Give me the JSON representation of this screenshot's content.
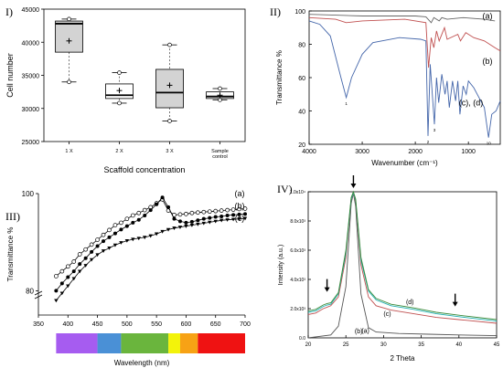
{
  "panels": [
    {
      "label": "I)",
      "chart_data": {
        "type": "box",
        "xlabel": "Scaffold concentration",
        "ylabel": "Cell number",
        "ylim": [
          25000,
          45000
        ],
        "yticks": [
          "25000",
          "30000",
          "35000",
          "40000",
          "45000"
        ],
        "categories": [
          "1 X",
          "2 X",
          "3 X",
          "Sample control"
        ],
        "boxes": [
          {
            "min": 34000,
            "q1": 38500,
            "median": 42800,
            "q3": 43200,
            "max": 43500,
            "mean": 40200,
            "fill": "#d3d3d3"
          },
          {
            "min": 30800,
            "q1": 31500,
            "median": 32000,
            "q3": 33700,
            "max": 35400,
            "mean": 32700,
            "fill": "#ffffff"
          },
          {
            "min": 28100,
            "q1": 30100,
            "median": 32400,
            "q3": 35900,
            "max": 39600,
            "mean": 33500,
            "fill": "#d3d3d3"
          },
          {
            "min": 31300,
            "q1": 31500,
            "median": 31800,
            "q3": 32500,
            "max": 33000,
            "mean": 32000,
            "fill": "#ffffff"
          }
        ]
      }
    },
    {
      "label": "II)",
      "chart_data": {
        "type": "line",
        "xlabel": "Wavenumber (cm⁻¹)",
        "ylabel": "Transmittance %",
        "xlim": [
          4000,
          400
        ],
        "ylim": [
          20,
          100
        ],
        "xticks": [
          "4000",
          "3000",
          "2000",
          "1000"
        ],
        "yticks": [
          "20",
          "40",
          "60",
          "80",
          "100"
        ],
        "series": [
          {
            "name": "(a)",
            "color": "#666666",
            "points": [
              [
                4000,
                98
              ],
              [
                3500,
                97.5
              ],
              [
                3000,
                97
              ],
              [
                2000,
                97
              ],
              [
                1800,
                96.5
              ],
              [
                1700,
                93
              ],
              [
                1650,
                96
              ],
              [
                1550,
                94
              ],
              [
                1500,
                96
              ],
              [
                1400,
                95
              ],
              [
                1100,
                96
              ],
              [
                900,
                95.5
              ],
              [
                700,
                95
              ],
              [
                500,
                94
              ]
            ]
          },
          {
            "name": "(b)",
            "color": "#c05050",
            "points": [
              [
                4000,
                96
              ],
              [
                3500,
                95
              ],
              [
                3300,
                93
              ],
              [
                3000,
                94
              ],
              [
                2200,
                95
              ],
              [
                1800,
                93
              ],
              [
                1750,
                66
              ],
              [
                1700,
                84
              ],
              [
                1650,
                78
              ],
              [
                1600,
                88
              ],
              [
                1550,
                82
              ],
              [
                1450,
                90
              ],
              [
                1400,
                83
              ],
              [
                1200,
                86
              ],
              [
                1150,
                82
              ],
              [
                1050,
                87
              ],
              [
                900,
                84
              ],
              [
                700,
                82
              ],
              [
                500,
                78
              ],
              [
                400,
                76
              ]
            ]
          },
          {
            "name": "(c), (d)",
            "color": "#4466aa",
            "points": [
              [
                4000,
                94
              ],
              [
                3800,
                92
              ],
              [
                3600,
                85
              ],
              [
                3400,
                60
              ],
              [
                3300,
                48
              ],
              [
                3200,
                60
              ],
              [
                3000,
                74
              ],
              [
                2800,
                81
              ],
              [
                2300,
                84
              ],
              [
                1900,
                83
              ],
              [
                1800,
                82
              ],
              [
                1760,
                25
              ],
              [
                1720,
                68
              ],
              [
                1640,
                32
              ],
              [
                1600,
                60
              ],
              [
                1560,
                45
              ],
              [
                1500,
                62
              ],
              [
                1440,
                50
              ],
              [
                1400,
                58
              ],
              [
                1360,
                42
              ],
              [
                1300,
                58
              ],
              [
                1240,
                46
              ],
              [
                1200,
                58
              ],
              [
                1160,
                38
              ],
              [
                1100,
                55
              ],
              [
                1040,
                50
              ],
              [
                1000,
                58
              ],
              [
                900,
                54
              ],
              [
                800,
                48
              ],
              [
                700,
                42
              ],
              [
                620,
                24
              ],
              [
                560,
                38
              ],
              [
                480,
                40
              ],
              [
                400,
                46
              ]
            ]
          }
        ],
        "peak_labels": [
          "1",
          "2",
          "3",
          "10"
        ]
      }
    },
    {
      "label": "III)",
      "chart_data": {
        "type": "line",
        "xlabel": "Wavelength (nm)",
        "ylabel": "Transmittance %",
        "xlim": [
          350,
          700
        ],
        "ylim": [
          75,
          100
        ],
        "xticks": [
          "350",
          "400",
          "450",
          "500",
          "550",
          "600",
          "650",
          "700"
        ],
        "yticks": [
          "80",
          "100"
        ],
        "series": [
          {
            "name": "(a)",
            "marker": "open-circle",
            "x": [
              380,
              390,
              400,
              410,
              420,
              430,
              440,
              450,
              460,
              470,
              480,
              490,
              500,
              510,
              520,
              530,
              540,
              550,
              560,
              570,
              580,
              590,
              600,
              610,
              620,
              630,
              640,
              650,
              660,
              670,
              680,
              690,
              700
            ],
            "y": [
              83,
              84,
              85,
              86,
              87.5,
              88.5,
              89.5,
              90.5,
              91.5,
              92.5,
              93.5,
              94,
              94.8,
              95.5,
              96,
              96.6,
              97.2,
              98,
              98.8,
              96.5,
              95.6,
              95.7,
              95.8,
              96,
              96.1,
              96.2,
              96.3,
              96.4,
              96.5,
              96.6,
              96.7,
              96.8,
              96.9
            ]
          },
          {
            "name": "(b)",
            "marker": "filled-circle",
            "x": [
              380,
              390,
              400,
              410,
              420,
              430,
              440,
              450,
              460,
              470,
              480,
              490,
              500,
              510,
              520,
              530,
              540,
              550,
              560,
              570,
              580,
              590,
              600,
              610,
              620,
              630,
              640,
              650,
              660,
              670,
              680,
              690,
              700
            ],
            "y": [
              80,
              81.5,
              82.8,
              84,
              85.5,
              86.7,
              88,
              89.2,
              90.2,
              91,
              91.8,
              92.6,
              93.3,
              94,
              94.6,
              95.5,
              96.6,
              97.8,
              99.2,
              97.2,
              94.8,
              94.3,
              94,
              94.2,
              94.5,
              94.8,
              95,
              95.2,
              95.3,
              95.5,
              95.6,
              95.7,
              95.8
            ]
          },
          {
            "name": "(c)",
            "marker": "triangle",
            "x": [
              380,
              390,
              400,
              410,
              420,
              430,
              440,
              450,
              460,
              470,
              480,
              490,
              500,
              510,
              520,
              530,
              540,
              550,
              560,
              570,
              580,
              590,
              600,
              610,
              620,
              630,
              640,
              650,
              660,
              670,
              680,
              690,
              700
            ],
            "y": [
              78,
              79.5,
              81,
              82.5,
              84,
              85.2,
              86.4,
              87.4,
              88.2,
              88.8,
              89.4,
              89.9,
              90.3,
              90.6,
              90.8,
              91,
              91.3,
              91.7,
              92.2,
              92.6,
              92.9,
              93.1,
              93.3,
              93.5,
              93.7,
              93.9,
              94.1,
              94.3,
              94.5,
              94.6,
              94.7,
              94.8,
              94.9
            ]
          }
        ],
        "spectrum_bar": [
          {
            "from": 380,
            "to": 450,
            "color": "#a65cf0"
          },
          {
            "from": 450,
            "to": 490,
            "color": "#4a90d6"
          },
          {
            "from": 490,
            "to": 570,
            "color": "#6ab53d"
          },
          {
            "from": 570,
            "to": 590,
            "color": "#f3f30a"
          },
          {
            "from": 590,
            "to": 620,
            "color": "#f7a215"
          },
          {
            "from": 620,
            "to": 700,
            "color": "#ef1212"
          }
        ]
      }
    },
    {
      "label": "IV)",
      "chart_data": {
        "type": "line",
        "xlabel": "2 Theta",
        "ylabel": "Intensity (a.u.)",
        "xlim": [
          20,
          45
        ],
        "ylim": [
          0,
          10000
        ],
        "xticks": [
          "20",
          "25",
          "30",
          "35",
          "40",
          "45"
        ],
        "yticks": [
          "0.0",
          "2.0x10³",
          "4.0x10³",
          "6.0x10³",
          "8.0x10³",
          "1.0x10⁴"
        ],
        "series": [
          {
            "name": "(a)",
            "color": "#555555",
            "points": [
              [
                20,
                0
              ],
              [
                23,
                200
              ],
              [
                24,
                800
              ],
              [
                25,
                3500
              ],
              [
                25.7,
                9200
              ],
              [
                26,
                9900
              ],
              [
                26.3,
                9000
              ],
              [
                27,
                3000
              ],
              [
                28,
                700
              ],
              [
                29,
                400
              ],
              [
                32,
                300
              ],
              [
                36,
                250
              ],
              [
                40,
                200
              ],
              [
                45,
                150
              ]
            ]
          },
          {
            "name": "(b)",
            "color": "#c05050",
            "points": [
              [
                20,
                1600
              ],
              [
                21,
                1700
              ],
              [
                22,
                2000
              ],
              [
                22.5,
                2100
              ],
              [
                23,
                2200
              ],
              [
                24,
                2800
              ],
              [
                25,
                5500
              ],
              [
                25.7,
                9500
              ],
              [
                26,
                9950
              ],
              [
                26.3,
                9300
              ],
              [
                27,
                5000
              ],
              [
                28,
                2800
              ],
              [
                29,
                2200
              ],
              [
                31,
                1900
              ],
              [
                34,
                1650
              ],
              [
                37,
                1400
              ],
              [
                40,
                1250
              ],
              [
                45,
                1000
              ]
            ]
          },
          {
            "name": "(c)",
            "color": "#20b0b0",
            "points": [
              [
                20,
                1750
              ],
              [
                21,
                1850
              ],
              [
                22,
                2150
              ],
              [
                22.5,
                2250
              ],
              [
                23,
                2300
              ],
              [
                24,
                3000
              ],
              [
                25,
                5800
              ],
              [
                25.7,
                9500
              ],
              [
                26,
                9950
              ],
              [
                26.3,
                9400
              ],
              [
                27,
                5300
              ],
              [
                28,
                3200
              ],
              [
                29,
                2600
              ],
              [
                31,
                2200
              ],
              [
                34,
                1950
              ],
              [
                37,
                1650
              ],
              [
                40,
                1450
              ],
              [
                45,
                1150
              ]
            ]
          },
          {
            "name": "(d)",
            "color": "#3a8a3a",
            "points": [
              [
                20,
                1850
              ],
              [
                21,
                1950
              ],
              [
                22,
                2250
              ],
              [
                22.5,
                2350
              ],
              [
                23,
                2400
              ],
              [
                24,
                3100
              ],
              [
                25,
                6000
              ],
              [
                25.7,
                9600
              ],
              [
                26,
                10000
              ],
              [
                26.3,
                9500
              ],
              [
                27,
                5500
              ],
              [
                28,
                3300
              ],
              [
                29,
                2700
              ],
              [
                31,
                2300
              ],
              [
                34,
                2050
              ],
              [
                37,
                1750
              ],
              [
                40,
                1550
              ],
              [
                45,
                1250
              ]
            ]
          }
        ],
        "arrows_at": [
          22.5,
          26,
          39.5
        ]
      }
    }
  ]
}
